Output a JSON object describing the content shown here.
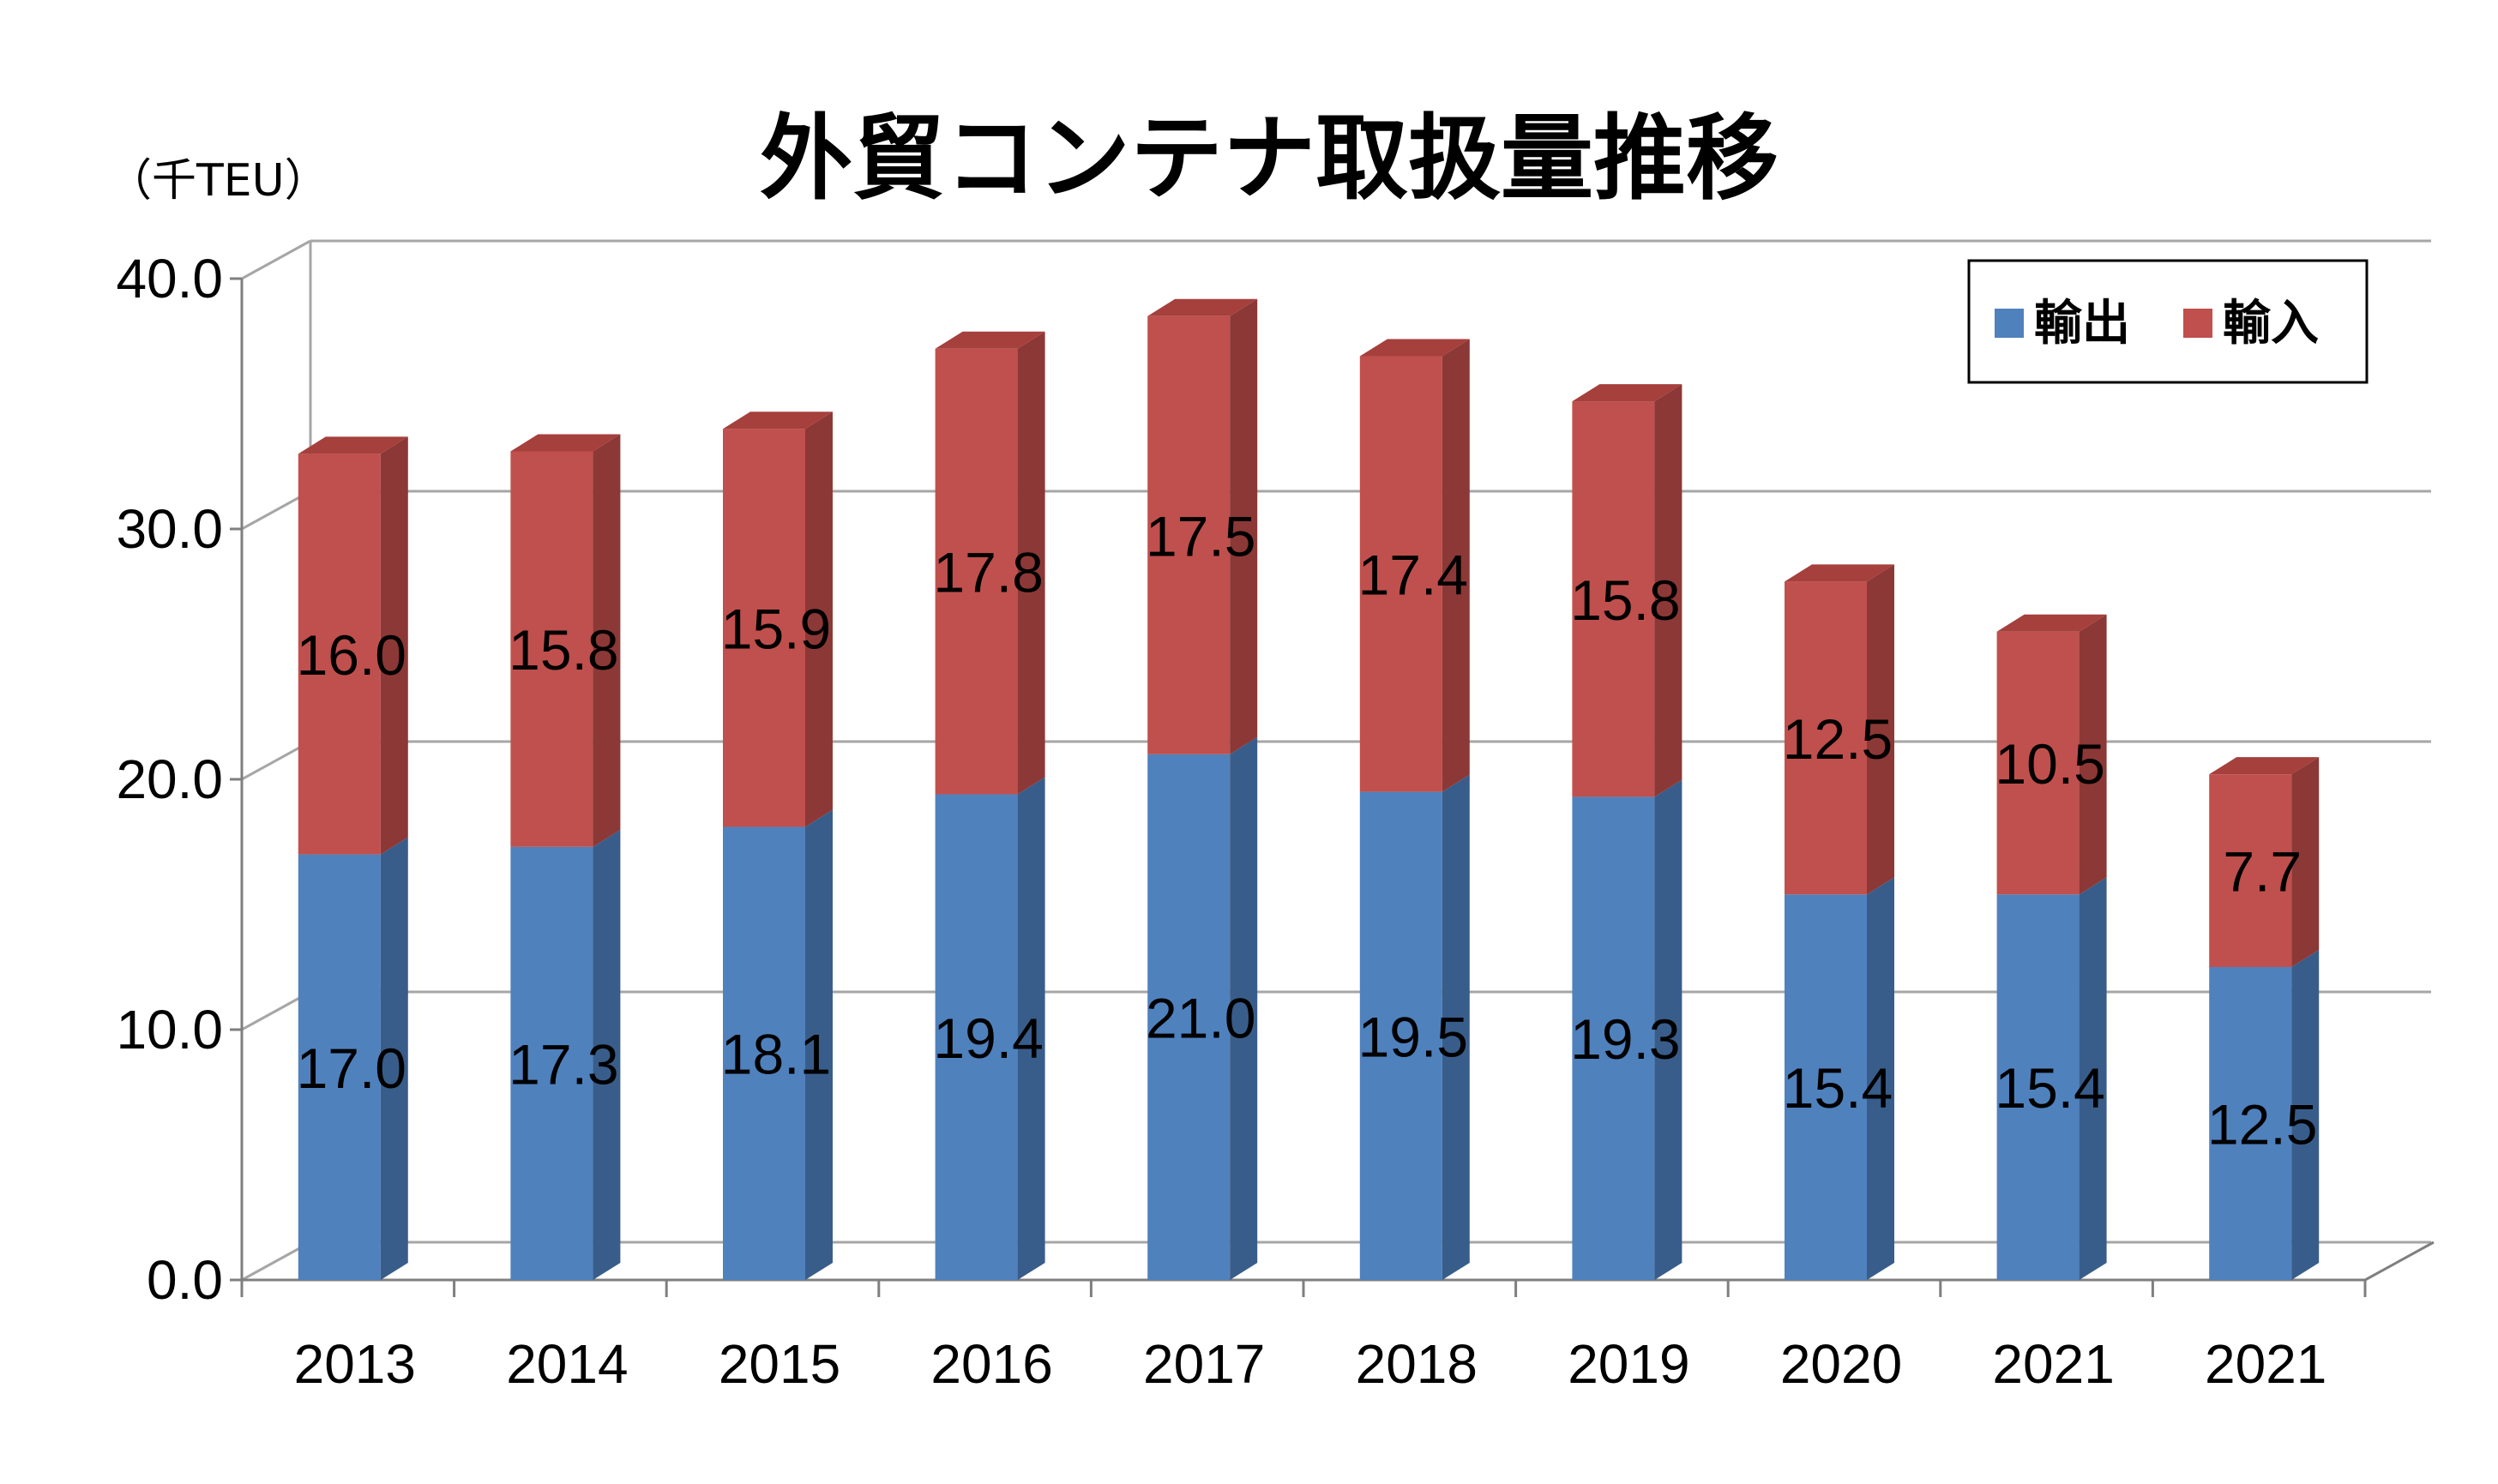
{
  "chart_data": {
    "type": "bar",
    "stacked": true,
    "title": "外貿コンテナ取扱量推移",
    "ylabel": "（千TEU）",
    "xlabel": "",
    "categories": [
      "2013",
      "2014",
      "2015",
      "2016",
      "2017",
      "2018",
      "2019",
      "2020",
      "2021",
      "2021"
    ],
    "y_ticks": [
      "0.0",
      "10.0",
      "20.0",
      "30.0",
      "40.0"
    ],
    "ylim": [
      0,
      40
    ],
    "grid": true,
    "legend_position": "top-right",
    "series": [
      {
        "name": "輸出",
        "color": "#4F81BD",
        "values": [
          17.0,
          17.3,
          18.1,
          19.4,
          21.0,
          19.5,
          19.3,
          15.4,
          15.4,
          12.5
        ],
        "labels": [
          "17.0",
          "17.3",
          "18.1",
          "19.4",
          "21.0",
          "19.5",
          "19.3",
          "15.4",
          "15.4",
          "12.5"
        ]
      },
      {
        "name": "輸入",
        "color": "#C0504D",
        "values": [
          16.0,
          15.8,
          15.9,
          17.8,
          17.5,
          17.4,
          15.8,
          12.5,
          10.5,
          7.7
        ],
        "labels": [
          "16.0",
          "15.8",
          "15.9",
          "17.8",
          "17.5",
          "17.4",
          "15.8",
          "12.5",
          "10.5",
          "7.7"
        ]
      }
    ]
  }
}
